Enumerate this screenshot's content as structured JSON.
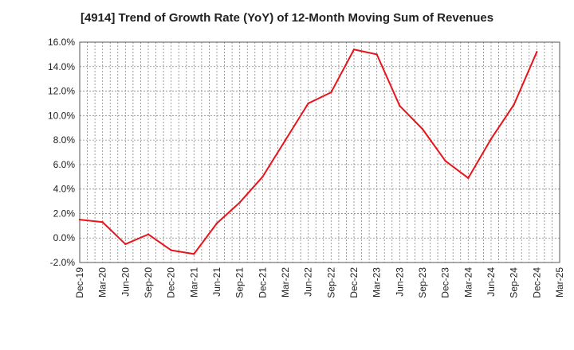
{
  "chart_data": {
    "type": "line",
    "title": "[4914]  Trend of Growth Rate (YoY) of 12-Month Moving Sum of Revenues",
    "xlabel": "",
    "ylabel": "",
    "x_ticks": [
      "Dec-19",
      "Mar-20",
      "Jun-20",
      "Sep-20",
      "Dec-20",
      "Mar-21",
      "Jun-21",
      "Sep-21",
      "Dec-21",
      "Mar-22",
      "Jun-22",
      "Sep-22",
      "Dec-22",
      "Mar-23",
      "Jun-23",
      "Sep-23",
      "Dec-23",
      "Mar-24",
      "Jun-24",
      "Sep-24",
      "Dec-24",
      "Mar-25"
    ],
    "y_ticks": [
      "16.0%",
      "14.0%",
      "12.0%",
      "10.0%",
      "8.0%",
      "6.0%",
      "4.0%",
      "2.0%",
      "0.0%",
      "-2.0%"
    ],
    "ylim": [
      -2,
      16
    ],
    "grid": true,
    "series": [
      {
        "color": "#e8141a",
        "x": [
          "Dec-19",
          "Mar-20",
          "Jun-20",
          "Sep-20",
          "Dec-20",
          "Mar-21",
          "Jun-21",
          "Sep-21",
          "Dec-21",
          "Mar-22",
          "Jun-22",
          "Sep-22",
          "Dec-22",
          "Mar-23",
          "Jun-23",
          "Sep-23",
          "Dec-23",
          "Mar-24",
          "Jun-24",
          "Sep-24",
          "Dec-24"
        ],
        "values": [
          1.5,
          1.3,
          -0.5,
          0.3,
          -1.0,
          -1.3,
          1.2,
          2.9,
          5.0,
          8.0,
          11.0,
          11.9,
          15.4,
          15.0,
          10.8,
          8.9,
          6.3,
          4.9,
          8.1,
          10.9,
          15.2
        ]
      }
    ]
  }
}
